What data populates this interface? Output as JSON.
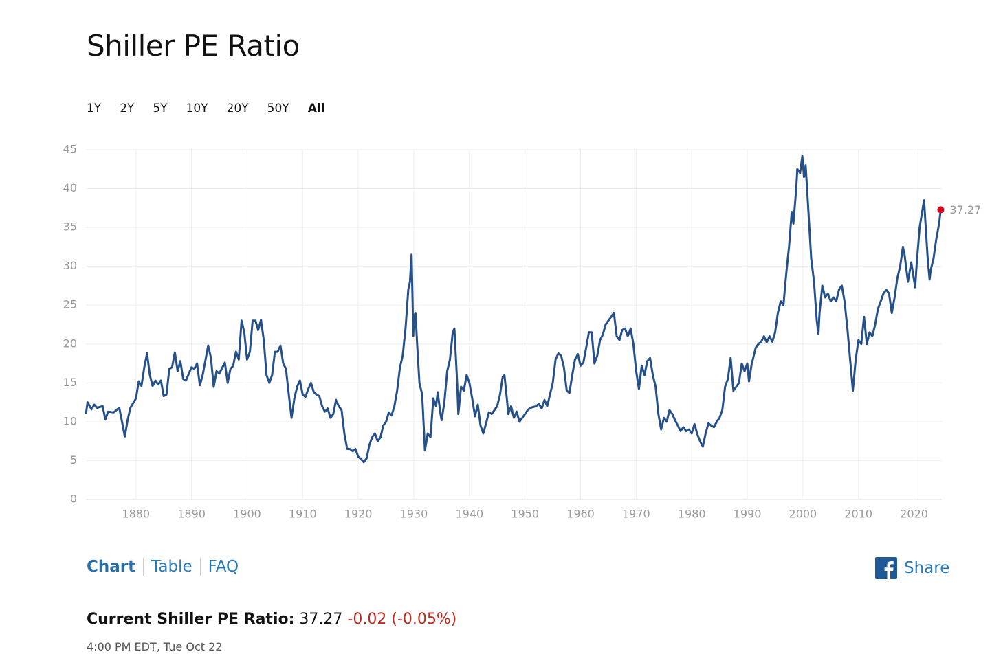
{
  "page": {
    "title": "Shiller PE Ratio",
    "ranges": [
      "1Y",
      "2Y",
      "5Y",
      "10Y",
      "20Y",
      "50Y",
      "All"
    ],
    "selected_range": 6,
    "tabs": [
      "Chart",
      "Table",
      "FAQ"
    ],
    "selected_tab": 0,
    "share": "Share",
    "current": {
      "label": "Current Shiller PE Ratio:",
      "value": "37.27",
      "change": "-0.02 (-0.05%)",
      "time": "4:00 PM EDT, Tue Oct 22"
    }
  },
  "chart_data": {
    "type": "line",
    "xlim": [
      1871,
      2025
    ],
    "xticks": [
      1880,
      1890,
      1900,
      1910,
      1920,
      1930,
      1940,
      1950,
      1960,
      1970,
      1980,
      1990,
      2000,
      2010,
      2020
    ],
    "ylim": [
      0,
      45
    ],
    "yticks": [
      0,
      5,
      10,
      15,
      20,
      25,
      30,
      35,
      40,
      45
    ],
    "grid": true,
    "series": [
      {
        "color": "#26508a",
        "highlight_color": "#d0021b",
        "x": [
          1871,
          1871.3,
          1872,
          1872.5,
          1873,
          1874,
          1874.5,
          1875,
          1876,
          1877,
          1877.5,
          1878,
          1878.5,
          1879,
          1880,
          1880.5,
          1881,
          1881.5,
          1882,
          1882.5,
          1883,
          1883.5,
          1884,
          1884.5,
          1885,
          1885.5,
          1886,
          1886.5,
          1887,
          1887.5,
          1888,
          1888.5,
          1889,
          1890,
          1890.5,
          1891,
          1891.5,
          1892,
          1893,
          1893.5,
          1894,
          1894.5,
          1895,
          1896,
          1896.5,
          1897,
          1897.5,
          1898,
          1898.5,
          1899,
          1899.5,
          1900,
          1900.5,
          1901,
          1901.5,
          1902,
          1902.5,
          1903,
          1903.5,
          1904,
          1904.5,
          1905,
          1905.5,
          1906,
          1906.5,
          1907,
          1907.5,
          1908,
          1908.5,
          1909,
          1909.5,
          1910,
          1910.5,
          1911,
          1911.5,
          1912,
          1912.5,
          1913,
          1913.5,
          1914,
          1914.5,
          1915,
          1915.5,
          1916,
          1916.5,
          1917,
          1917.5,
          1918,
          1918.5,
          1919,
          1919.5,
          1920,
          1920.5,
          1921,
          1921.5,
          1922,
          1922.5,
          1923,
          1923.5,
          1924,
          1924.5,
          1925,
          1925.5,
          1926,
          1926.5,
          1927,
          1927.5,
          1928,
          1928.5,
          1929,
          1929.3,
          1929.6,
          1929.9,
          1930,
          1930.3,
          1930.6,
          1931,
          1931.5,
          1932,
          1932.5,
          1933,
          1933.5,
          1934,
          1934.3,
          1934.8,
          1935,
          1935.5,
          1936,
          1936.5,
          1937,
          1937.3,
          1937.8,
          1938,
          1938.5,
          1939,
          1939.5,
          1940,
          1940.5,
          1941,
          1941.5,
          1942,
          1942.5,
          1943,
          1943.5,
          1944,
          1944.5,
          1945,
          1945.5,
          1946,
          1946.3,
          1946.8,
          1947,
          1947.5,
          1948,
          1948.5,
          1949,
          1950,
          1950.5,
          1951,
          1952,
          1952.5,
          1953,
          1953.5,
          1954,
          1954.5,
          1955,
          1955.5,
          1956,
          1956.5,
          1957,
          1957.5,
          1958,
          1958.5,
          1959,
          1959.5,
          1960,
          1960.5,
          1961,
          1961.5,
          1962,
          1962.5,
          1963,
          1963.5,
          1964,
          1964.5,
          1965,
          1965.5,
          1966,
          1966.5,
          1967,
          1967.5,
          1968,
          1968.5,
          1969,
          1969.5,
          1970,
          1970.5,
          1971,
          1971.5,
          1972,
          1972.5,
          1973,
          1973.5,
          1974,
          1974.5,
          1975,
          1975.5,
          1976,
          1976.5,
          1977,
          1977.5,
          1978,
          1978.5,
          1979,
          1979.5,
          1980,
          1980.5,
          1981,
          1981.5,
          1982,
          1982.5,
          1983,
          1983.5,
          1984,
          1984.5,
          1985,
          1985.5,
          1986,
          1986.5,
          1987,
          1987.5,
          1988,
          1988.5,
          1989,
          1989.5,
          1990,
          1990.3,
          1990.8,
          1991,
          1991.5,
          1992,
          1992.5,
          1993,
          1993.5,
          1994,
          1994.5,
          1995,
          1995.5,
          1996,
          1996.5,
          1997,
          1997.5,
          1998,
          1998.3,
          1998.8,
          1999,
          1999.5,
          1999.9,
          2000.2,
          2000.5,
          2001,
          2001.5,
          2002,
          2002.5,
          2002.8,
          2003,
          2003.5,
          2004,
          2004.5,
          2005,
          2005.5,
          2006,
          2006.5,
          2007,
          2007.5,
          2008,
          2008.5,
          2009,
          2009.5,
          2010,
          2010.5,
          2011,
          2011.5,
          2012,
          2012.5,
          2013,
          2013.5,
          2014,
          2014.5,
          2015,
          2015.5,
          2016,
          2016.5,
          2017,
          2017.5,
          2018,
          2018.3,
          2018.9,
          2019.5,
          2020.2,
          2020.5,
          2021,
          2021.8,
          2022.5,
          2022.8,
          2023,
          2023.5,
          2024,
          2024.5,
          2024.8
        ],
        "values": [
          11.0,
          12.5,
          11.6,
          12.2,
          11.8,
          12.0,
          10.3,
          11.3,
          11.2,
          11.8,
          10.0,
          8.1,
          10.2,
          11.8,
          13.0,
          15.2,
          14.6,
          17.0,
          18.8,
          16.0,
          14.6,
          15.3,
          14.8,
          15.3,
          13.3,
          13.5,
          16.8,
          17.0,
          18.9,
          16.5,
          17.8,
          15.5,
          15.3,
          17.0,
          16.8,
          17.5,
          14.7,
          16.0,
          19.8,
          18.2,
          14.5,
          16.5,
          16.2,
          17.6,
          15.0,
          16.8,
          17.2,
          19.0,
          18.0,
          23.0,
          21.5,
          18.0,
          19.0,
          23.0,
          23.0,
          21.8,
          23.1,
          20.5,
          16.0,
          15.0,
          16.0,
          19.0,
          19.0,
          19.8,
          17.5,
          16.8,
          13.5,
          10.5,
          13.0,
          14.5,
          15.3,
          13.5,
          13.2,
          14.2,
          15.0,
          13.8,
          13.5,
          13.3,
          12.0,
          11.3,
          11.7,
          10.5,
          11.0,
          12.8,
          12.0,
          11.5,
          8.5,
          6.5,
          6.5,
          6.2,
          6.5,
          5.5,
          5.2,
          4.8,
          5.3,
          7.0,
          8.0,
          8.5,
          7.5,
          8.0,
          9.5,
          10.0,
          11.2,
          10.8,
          12.0,
          14.0,
          17.0,
          18.5,
          22.0,
          27.0,
          28.0,
          31.5,
          21.0,
          23.5,
          24.0,
          20.0,
          15.0,
          13.5,
          6.3,
          8.5,
          8.0,
          13.0,
          12.0,
          13.8,
          11.0,
          10.2,
          12.5,
          16.5,
          18.0,
          21.5,
          22.0,
          15.0,
          11.0,
          14.5,
          14.0,
          16.0,
          15.0,
          13.0,
          10.7,
          12.2,
          9.5,
          8.5,
          9.8,
          11.2,
          11.0,
          11.5,
          12.0,
          13.5,
          15.8,
          16.0,
          12.5,
          11.0,
          12.0,
          10.5,
          11.3,
          10.0,
          11.0,
          11.5,
          11.8,
          12.0,
          12.3,
          11.7,
          12.8,
          12.0,
          13.5,
          15.0,
          18.0,
          18.8,
          18.5,
          17.0,
          14.0,
          13.7,
          16.0,
          18.0,
          18.7,
          17.2,
          17.6,
          19.5,
          21.5,
          21.5,
          17.5,
          18.5,
          20.5,
          21.2,
          22.5,
          23.0,
          23.5,
          24.0,
          21.0,
          20.5,
          21.8,
          22.0,
          21.0,
          22.0,
          20.0,
          16.5,
          14.2,
          17.2,
          16.0,
          17.8,
          18.2,
          16.0,
          14.5,
          11.0,
          9.0,
          10.5,
          10.0,
          11.5,
          11.0,
          10.2,
          9.5,
          8.8,
          9.3,
          8.8,
          9.0,
          8.5,
          9.7,
          8.4,
          7.5,
          6.8,
          8.5,
          9.8,
          9.5,
          9.3,
          10.0,
          10.5,
          11.5,
          14.5,
          15.5,
          18.2,
          14.0,
          14.5,
          15.0,
          17.5,
          16.5,
          17.5,
          15.2,
          17.5,
          18.0,
          19.5,
          20.0,
          20.3,
          21.0,
          20.2,
          21.0,
          20.3,
          21.5,
          24.0,
          25.5,
          25.0,
          29.0,
          32.5,
          37.0,
          35.5,
          40.0,
          42.5,
          42.0,
          44.2,
          41.5,
          43.0,
          37.0,
          31.0,
          28.0,
          23.0,
          21.3,
          24.0,
          27.5,
          26.0,
          26.5,
          25.5,
          26.0,
          25.5,
          27.0,
          27.5,
          25.5,
          22.0,
          18.0,
          14.0,
          18.0,
          20.5,
          20.0,
          23.5,
          20.0,
          21.5,
          21.0,
          22.5,
          24.5,
          25.5,
          26.5,
          27.0,
          26.5,
          24.0,
          26.0,
          28.5,
          30.0,
          32.5,
          31.5,
          28.0,
          30.5,
          27.3,
          30.5,
          35.0,
          38.5,
          30.5,
          28.3,
          29.5,
          31.0,
          33.5,
          35.5,
          37.27
        ]
      }
    ]
  }
}
